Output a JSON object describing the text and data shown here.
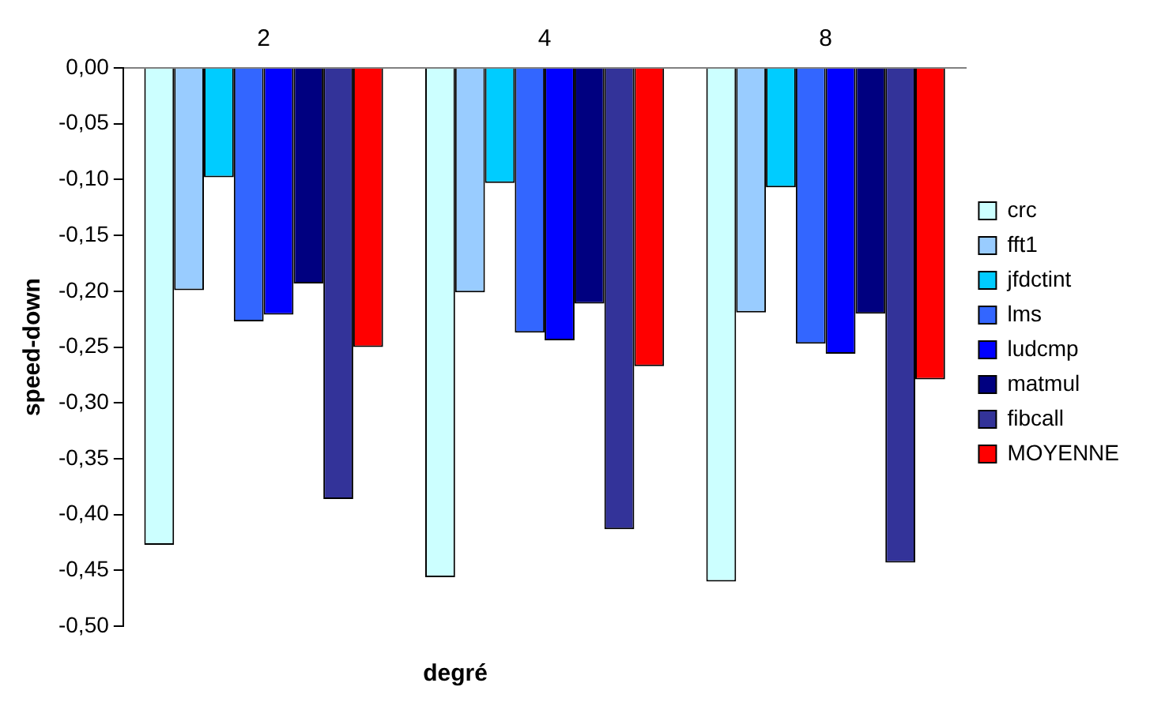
{
  "chart_data": {
    "type": "bar",
    "xlabel": "degré",
    "ylabel": "speed-down",
    "categories": [
      "2",
      "4",
      "8"
    ],
    "series": [
      {
        "name": "crc",
        "color": "#ccffff",
        "values": [
          -0.427,
          -0.456,
          -0.46
        ]
      },
      {
        "name": "fft1",
        "color": "#99ccff",
        "values": [
          -0.199,
          -0.201,
          -0.219
        ]
      },
      {
        "name": "jfdctint",
        "color": "#00ccff",
        "values": [
          -0.098,
          -0.103,
          -0.107
        ]
      },
      {
        "name": "lms",
        "color": "#3366ff",
        "values": [
          -0.227,
          -0.237,
          -0.247
        ]
      },
      {
        "name": "ludcmp",
        "color": "#0000ff",
        "values": [
          -0.221,
          -0.244,
          -0.256
        ]
      },
      {
        "name": "matmul",
        "color": "#000080",
        "values": [
          -0.193,
          -0.211,
          -0.22
        ]
      },
      {
        "name": "fibcall",
        "color": "#333399",
        "values": [
          -0.386,
          -0.413,
          -0.443
        ]
      },
      {
        "name": "MOYENNE",
        "color": "#ff0000",
        "values": [
          -0.25,
          -0.267,
          -0.279
        ]
      }
    ],
    "ylim": [
      -0.5,
      0
    ],
    "yticks": [
      {
        "value": 0,
        "label": "0,00"
      },
      {
        "value": -0.05,
        "label": "-0,05"
      },
      {
        "value": -0.1,
        "label": "-0,10"
      },
      {
        "value": -0.15,
        "label": "-0,15"
      },
      {
        "value": -0.2,
        "label": "-0,20"
      },
      {
        "value": -0.25,
        "label": "-0,25"
      },
      {
        "value": -0.3,
        "label": "-0,30"
      },
      {
        "value": -0.35,
        "label": "-0,35"
      },
      {
        "value": -0.4,
        "label": "-0,40"
      },
      {
        "value": -0.45,
        "label": "-0,45"
      },
      {
        "value": -0.5,
        "label": "-0,50"
      }
    ],
    "grid": false,
    "legend": "right"
  }
}
